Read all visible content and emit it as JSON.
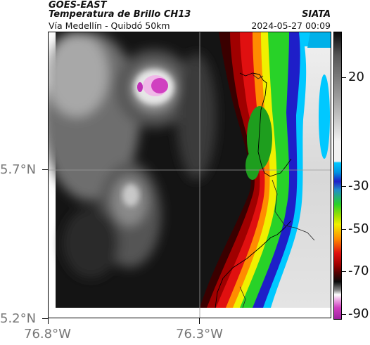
{
  "header": {
    "satellite": "GOES-EAST",
    "product": "Temperatura de Brillo CH13",
    "route": "Vía Medellín - Quibdó 50km",
    "org": "SIATA",
    "timestamp": "2024-05-27 00:09"
  },
  "map": {
    "lat_labels": [
      "5.7°N",
      "5.2°N"
    ],
    "lon_labels": [
      "76.8°W",
      "76.3°W"
    ],
    "features": [
      "brightness-temperature-field",
      "coastline",
      "political-border",
      "gridlines",
      "cold-cloud-top"
    ]
  },
  "colorbar": {
    "ticks": [
      "20",
      "-30",
      "-50",
      "-70",
      "-90"
    ],
    "colors": {
      "white": "#f2f2f2",
      "cyan": "#00c8ff",
      "blue": "#1e1ec8",
      "green": "#28d228",
      "yellow": "#f0f000",
      "orange": "#ff8c00",
      "red": "#e01010",
      "dark_red": "#500000",
      "black": "#0a0a0a",
      "magenta": "#d040c0"
    }
  }
}
